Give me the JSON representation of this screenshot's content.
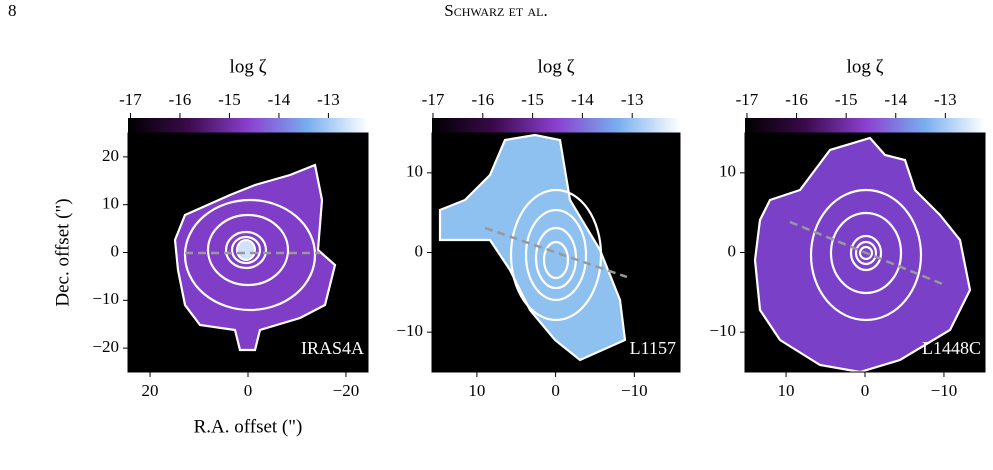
{
  "header": {
    "page": "8",
    "running_head": "Schwarz et al."
  },
  "chart_data": [
    {
      "type": "image",
      "colorbar": {
        "label": "log ζ",
        "lim": [
          -17.05,
          -12.2
        ],
        "ticks": [
          -17,
          -16,
          -15,
          -14,
          -13
        ]
      },
      "xlim": [
        24.5,
        -24.5
      ],
      "ylim": [
        -25,
        25
      ],
      "xticks": [
        20,
        0,
        {
          "value": -20,
          "label": "−20"
        }
      ],
      "yticks": [
        {
          "value": -20,
          "label": "−20"
        },
        {
          "value": -10,
          "label": "−10"
        },
        0,
        10,
        20
      ],
      "xlabel": "R.A. offset (\")",
      "ylabel": "Dec. offset (\")",
      "annotation": "IRAS4A"
    },
    {
      "type": "image",
      "colorbar": {
        "label": "log ζ",
        "lim": [
          -17.02,
          -12.04
        ],
        "ticks": [
          -17,
          -16,
          -15,
          -14,
          -13
        ]
      },
      "xlim": [
        15.7,
        -15.8
      ],
      "ylim": [
        -15,
        15
      ],
      "xticks": [
        10,
        0,
        {
          "value": -10,
          "label": "−10"
        }
      ],
      "yticks": [
        {
          "value": -10,
          "label": "−10"
        },
        0,
        10
      ],
      "annotation": "L1157"
    },
    {
      "type": "image",
      "colorbar": {
        "label": "log ζ",
        "lim": [
          -17.04,
          -12.2
        ],
        "ticks": [
          -17,
          -16,
          -15,
          -14,
          -13
        ]
      },
      "xlim": [
        15.2,
        -15.2
      ],
      "ylim": [
        -15,
        15
      ],
      "xticks": [
        10,
        0,
        {
          "value": -10,
          "label": "−10"
        }
      ],
      "yticks": [
        {
          "value": -10,
          "label": "−10"
        },
        0,
        10
      ],
      "annotation": "L1448C"
    }
  ]
}
